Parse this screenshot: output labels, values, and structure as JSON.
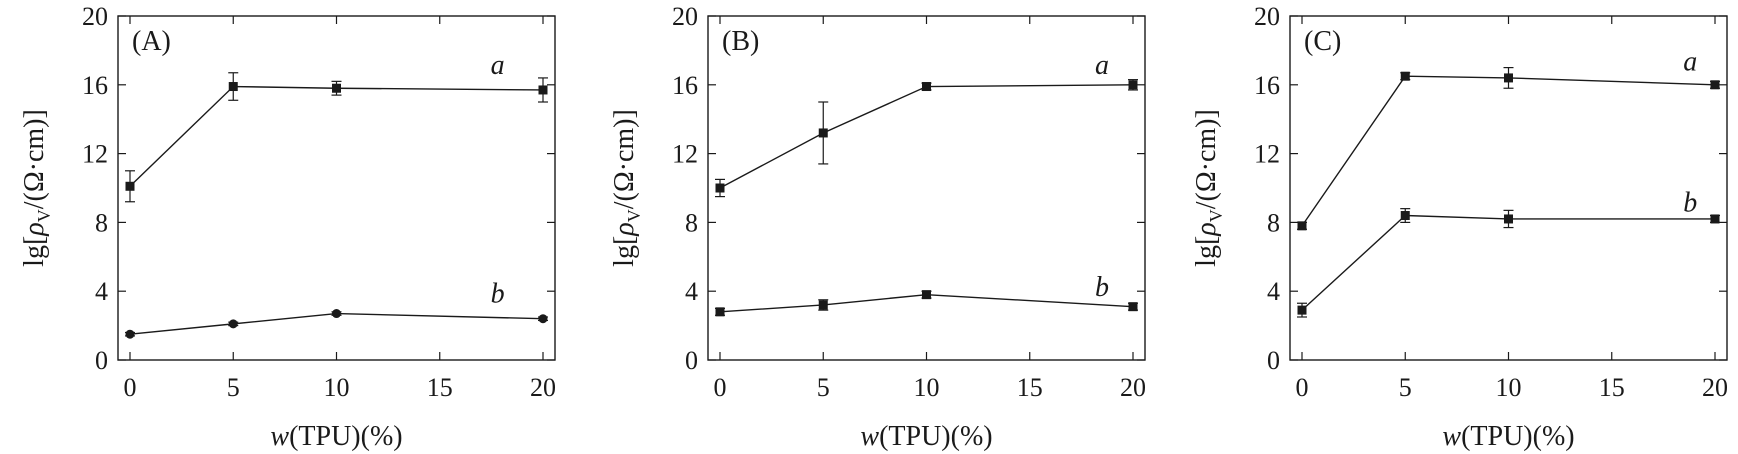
{
  "chart_data": [
    {
      "type": "line",
      "panel_label": "(A)",
      "xlabel_italic": "w",
      "xlabel_rest": "(TPU)(%)",
      "ylabel_prefix": "lg[",
      "ylabel_italic": "ρ",
      "ylabel_sub": "V",
      "ylabel_suffix": "/(Ω·cm)]",
      "xlim": [
        0,
        20
      ],
      "ylim": [
        0,
        20
      ],
      "xticks": [
        0,
        5,
        10,
        15,
        20
      ],
      "yticks": [
        0,
        4,
        8,
        12,
        16,
        20
      ],
      "series": [
        {
          "label": "a",
          "marker": "square",
          "points": [
            {
              "x": 0,
              "y": 10.1,
              "err": 0.9
            },
            {
              "x": 5,
              "y": 15.9,
              "err": 0.8
            },
            {
              "x": 10,
              "y": 15.8,
              "err": 0.4
            },
            {
              "x": 20,
              "y": 15.7,
              "err": 0.7
            }
          ],
          "label_pos": {
            "x": 17.8,
            "y": 17.1
          }
        },
        {
          "label": "b",
          "marker": "circle",
          "points": [
            {
              "x": 0,
              "y": 1.5,
              "err": 0.1
            },
            {
              "x": 5,
              "y": 2.1,
              "err": 0.1
            },
            {
              "x": 10,
              "y": 2.7,
              "err": 0.1
            },
            {
              "x": 20,
              "y": 2.4,
              "err": 0.1
            }
          ],
          "label_pos": {
            "x": 17.8,
            "y": 3.8
          }
        }
      ]
    },
    {
      "type": "line",
      "panel_label": "(B)",
      "xlabel_italic": "w",
      "xlabel_rest": "(TPU)(%)",
      "ylabel_prefix": "lg[",
      "ylabel_italic": "ρ",
      "ylabel_sub": "V",
      "ylabel_suffix": "/(Ω·cm)]",
      "xlim": [
        0,
        20
      ],
      "ylim": [
        0,
        20
      ],
      "xticks": [
        0,
        5,
        10,
        15,
        20
      ],
      "yticks": [
        0,
        4,
        8,
        12,
        16,
        20
      ],
      "series": [
        {
          "label": "a",
          "marker": "square",
          "points": [
            {
              "x": 0,
              "y": 10.0,
              "err": 0.5
            },
            {
              "x": 5,
              "y": 13.2,
              "err": 1.8
            },
            {
              "x": 10,
              "y": 15.9,
              "err": 0.2
            },
            {
              "x": 20,
              "y": 16.0,
              "err": 0.3
            }
          ],
          "label_pos": {
            "x": 18.5,
            "y": 17.1
          }
        },
        {
          "label": "b",
          "marker": "square",
          "points": [
            {
              "x": 0,
              "y": 2.8,
              "err": 0.2
            },
            {
              "x": 5,
              "y": 3.2,
              "err": 0.3
            },
            {
              "x": 10,
              "y": 3.8,
              "err": 0.2
            },
            {
              "x": 20,
              "y": 3.1,
              "err": 0.2
            }
          ],
          "label_pos": {
            "x": 18.5,
            "y": 4.2
          }
        }
      ]
    },
    {
      "type": "line",
      "panel_label": "(C)",
      "xlabel_italic": "w",
      "xlabel_rest": "(TPU)(%)",
      "ylabel_prefix": "lg[",
      "ylabel_italic": "ρ",
      "ylabel_sub": "V",
      "ylabel_suffix": "/(Ω·cm)]",
      "xlim": [
        0,
        20
      ],
      "ylim": [
        0,
        20
      ],
      "xticks": [
        0,
        5,
        10,
        15,
        20
      ],
      "yticks": [
        0,
        4,
        8,
        12,
        16,
        20
      ],
      "series": [
        {
          "label": "a",
          "marker": "square",
          "points": [
            {
              "x": 0,
              "y": 7.8,
              "err": 0.2
            },
            {
              "x": 5,
              "y": 16.5,
              "err": 0.2
            },
            {
              "x": 10,
              "y": 16.4,
              "err": 0.6
            },
            {
              "x": 20,
              "y": 16.0,
              "err": 0.2
            }
          ],
          "label_pos": {
            "x": 18.8,
            "y": 17.3
          }
        },
        {
          "label": "b",
          "marker": "square",
          "points": [
            {
              "x": 0,
              "y": 2.9,
              "err": 0.4
            },
            {
              "x": 5,
              "y": 8.4,
              "err": 0.4
            },
            {
              "x": 10,
              "y": 8.2,
              "err": 0.5
            },
            {
              "x": 20,
              "y": 8.2,
              "err": 0.2
            }
          ],
          "label_pos": {
            "x": 18.8,
            "y": 9.1
          }
        }
      ]
    }
  ]
}
